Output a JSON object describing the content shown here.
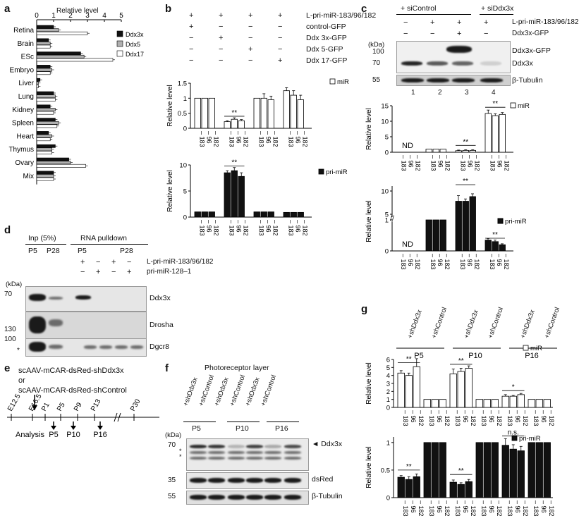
{
  "panels": {
    "a": "a",
    "b": "b",
    "c": "c",
    "d": "d",
    "e": "e",
    "f": "f",
    "g": "g"
  },
  "a": {
    "title": "Relative level",
    "xticks": [
      "0",
      "1",
      "2",
      "3",
      "4",
      "5"
    ],
    "tissues": [
      "Retina",
      "Brain",
      "ESc",
      "Embryo",
      "Liver",
      "Lung",
      "Kidney",
      "Spleen",
      "Heart",
      "Thymus",
      "Ovary",
      "Mix"
    ],
    "legend": [
      "Ddx3x",
      "Ddx5",
      "Ddx17"
    ],
    "colors": {
      "Ddx3x": "#111111",
      "Ddx5": "#b0b0b0",
      "Ddx17": "#ffffff"
    }
  },
  "b": {
    "conditions": [
      {
        "label": "L-pri-miR-183/96/182",
        "signs": [
          "+",
          "+",
          "+",
          "+"
        ]
      },
      {
        "label": "control-GFP",
        "signs": [
          "+",
          "−",
          "−",
          "−"
        ]
      },
      {
        "label": "Ddx 3x-GFP",
        "signs": [
          "−",
          "+",
          "−",
          "−"
        ]
      },
      {
        "label": "Ddx 5-GFP",
        "signs": [
          "−",
          "−",
          "+",
          "−"
        ]
      },
      {
        "label": "Ddx 17-GFP",
        "signs": [
          "−",
          "−",
          "−",
          "+"
        ]
      }
    ],
    "ylabel": "Relative level",
    "legend_top": "miR",
    "legend_bottom": "pri-miR",
    "sig": "**",
    "mirs": [
      "183",
      "96",
      "182"
    ]
  },
  "c": {
    "groups": [
      "+ siControl",
      "+ siDdx3x"
    ],
    "rows": [
      {
        "label": "L-pri-miR-183/96/182",
        "signs": [
          "−",
          "+",
          "+",
          "+"
        ]
      },
      {
        "label": "Ddx3x-GFP",
        "signs": [
          "−",
          "−",
          "+",
          "−"
        ]
      }
    ],
    "kda": "(kDa)",
    "markers": [
      "100",
      "70",
      "55"
    ],
    "band_labels": [
      "Ddx3x-GFP",
      "Ddx3x",
      "β-Tubulin"
    ],
    "lanes": [
      "1",
      "2",
      "3",
      "4"
    ],
    "ylabel": "Relative level",
    "nd": "ND",
    "legend_top": "miR",
    "legend_bottom": "pri-miR",
    "yticks_top": [
      "0",
      "5",
      "10",
      "15"
    ],
    "yticks_bottom": [
      "0",
      "1",
      "5",
      "10"
    ],
    "sig": "**",
    "mirs": [
      "183",
      "96",
      "182"
    ]
  },
  "d": {
    "inp": "Inp (5%)",
    "pulldown": "RNA pulldown",
    "ages": [
      "P5",
      "P28",
      "P5",
      "P28"
    ],
    "rows": [
      {
        "label": "L-pri-miR-183/96/182",
        "signs": [
          "+",
          "−",
          "+",
          "−"
        ]
      },
      {
        "label": "pri-miR-128–1",
        "signs": [
          "−",
          "+",
          "−",
          "+"
        ]
      }
    ],
    "kda": "(kDa)",
    "markers": [
      "70",
      "130",
      "100"
    ],
    "band_labels": [
      "Ddx3x",
      "Drosha",
      "Dgcr8"
    ],
    "star": "*"
  },
  "e": {
    "line1": "scAAV-mCAR-dsRed-shDdx3x",
    "line2": "or",
    "line3": "scAAV-mCAR-dsRed-shControl",
    "timepoints": [
      "E12.5",
      "E16.5",
      "P1",
      "P5",
      "P9",
      "P13",
      "P30"
    ],
    "analysis": "Analysis",
    "analysis_points": [
      "P5",
      "P10",
      "P16"
    ]
  },
  "f": {
    "title": "Photoreceptor layer",
    "lanes": [
      "+shDdx3x",
      "+shControl",
      "+shDdx3x",
      "+shControl",
      "+shDdx3x",
      "+shControl"
    ],
    "ages": [
      "P5",
      "P10",
      "P16"
    ],
    "kda": "(kDa)",
    "markers": [
      "70",
      "35",
      "55"
    ],
    "band_labels": [
      "◄ Ddx3x",
      "dsRed",
      "β-Tubulin"
    ],
    "stars": "*"
  },
  "g": {
    "lanes": [
      "+shDdx3x",
      "+shControl",
      "+shDdx3x",
      "+shControl",
      "+shDdx3x",
      "+shControl"
    ],
    "ages": [
      "P5",
      "P10",
      "P16"
    ],
    "ylabel": "Relative level",
    "legend_top": "miR",
    "legend_bottom": "pri-miR",
    "yticks_top": [
      "0",
      "1",
      "2",
      "3",
      "4",
      "5",
      "6"
    ],
    "yticks_bottom": [
      "0",
      "0.5",
      "1"
    ],
    "sig": "**",
    "sig_single": "*",
    "ns": "n.s.",
    "mirs": [
      "183",
      "96",
      "182"
    ]
  },
  "chart_data": [
    {
      "type": "bar",
      "panel": "a",
      "orientation": "horizontal",
      "categories": [
        "Retina",
        "Brain",
        "ESc",
        "Embryo",
        "Liver",
        "Lung",
        "Kidney",
        "Spleen",
        "Heart",
        "Thymus",
        "Ovary",
        "Mix"
      ],
      "xlim": [
        0,
        5
      ],
      "series": [
        {
          "name": "Ddx3x",
          "values": [
            1.0,
            0.7,
            2.6,
            0.8,
            0.2,
            1.0,
            0.8,
            1.1,
            0.7,
            1.1,
            1.9,
            1.0
          ]
        },
        {
          "name": "Ddx5",
          "values": [
            1.3,
            0.8,
            2.8,
            0.9,
            0.1,
            1.1,
            1.1,
            1.3,
            0.9,
            0.9,
            2.0,
            1.0
          ]
        },
        {
          "name": "Ddx17",
          "values": [
            3.0,
            0.8,
            4.5,
            0.8,
            0.1,
            1.1,
            1.0,
            1.2,
            0.8,
            0.9,
            2.9,
            1.0
          ]
        }
      ]
    },
    {
      "type": "bar",
      "panel": "b-top",
      "ylabel": "Relative level",
      "ylim": [
        0,
        1.5
      ],
      "categories": [
        "183",
        "96",
        "182",
        "183",
        "96",
        "182",
        "183",
        "96",
        "182",
        "183",
        "96",
        "182"
      ],
      "series": [
        {
          "name": "miR",
          "values": [
            1,
            1,
            1,
            0.22,
            0.3,
            0.25,
            1,
            1,
            0.95,
            1.25,
            1.1,
            0.95
          ]
        }
      ]
    },
    {
      "type": "bar",
      "panel": "b-bottom",
      "ylabel": "Relative level",
      "ylim": [
        0,
        10
      ],
      "categories": [
        "183",
        "96",
        "182",
        "183",
        "96",
        "182",
        "183",
        "96",
        "182",
        "183",
        "96",
        "182"
      ],
      "series": [
        {
          "name": "pri-miR",
          "values": [
            1,
            1,
            1,
            8.5,
            8.9,
            7.8,
            1,
            1,
            1,
            0.9,
            0.9,
            0.9
          ]
        }
      ]
    },
    {
      "type": "bar",
      "panel": "c-top",
      "ylabel": "Relative level",
      "ylim": [
        0,
        15
      ],
      "categories": [
        "183",
        "96",
        "182",
        "183",
        "96",
        "182",
        "183",
        "96",
        "182",
        "183",
        "96",
        "182"
      ],
      "series": [
        {
          "name": "miR",
          "values": [
            0,
            0,
            0,
            1,
            1,
            1,
            0.5,
            0.6,
            0.6,
            12.5,
            11.8,
            12.2
          ]
        }
      ]
    },
    {
      "type": "bar",
      "panel": "c-bottom",
      "ylabel": "Relative level",
      "categories": [
        "183",
        "96",
        "182",
        "183",
        "96",
        "182",
        "183",
        "96",
        "182",
        "183",
        "96",
        "182"
      ],
      "series": [
        {
          "name": "pri-miR",
          "values": [
            0,
            0,
            0,
            1,
            1,
            1,
            7.8,
            7.8,
            8.8,
            0.35,
            0.3,
            0.2
          ]
        }
      ]
    },
    {
      "type": "bar",
      "panel": "g-top",
      "ylabel": "Relative level",
      "ylim": [
        0,
        6
      ],
      "categories": [
        "183",
        "96",
        "182",
        "183",
        "96",
        "182",
        "183",
        "96",
        "182",
        "183",
        "96",
        "182",
        "183",
        "96",
        "182",
        "183",
        "96",
        "182"
      ],
      "series": [
        {
          "name": "miR",
          "values": [
            4.3,
            4.0,
            5.1,
            1,
            1,
            1,
            4.2,
            4.5,
            4.9,
            1,
            1,
            1,
            1.4,
            1.4,
            1.6,
            1,
            1,
            1
          ]
        }
      ]
    },
    {
      "type": "bar",
      "panel": "g-bottom",
      "ylabel": "Relative level",
      "ylim": [
        0,
        1.1
      ],
      "categories": [
        "183",
        "96",
        "182",
        "183",
        "96",
        "182",
        "183",
        "96",
        "182",
        "183",
        "96",
        "182",
        "183",
        "96",
        "182",
        "183",
        "96",
        "182"
      ],
      "series": [
        {
          "name": "pri-miR",
          "values": [
            0.37,
            0.33,
            0.38,
            1,
            1,
            1,
            0.28,
            0.24,
            0.29,
            1,
            1,
            1,
            0.95,
            0.88,
            0.85,
            1,
            1,
            1
          ]
        }
      ]
    }
  ]
}
